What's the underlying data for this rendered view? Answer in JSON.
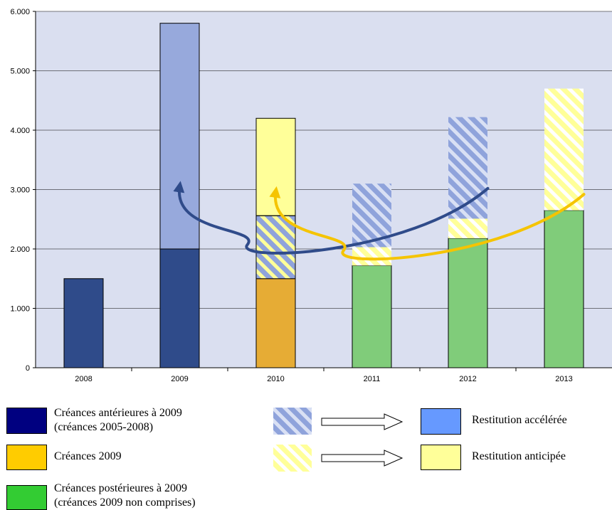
{
  "chart_data": {
    "type": "bar",
    "stacked": true,
    "categories": [
      "2008",
      "2009",
      "2010",
      "2011",
      "2012",
      "2013"
    ],
    "y_ticks": [
      "0",
      "1.000",
      "2.000",
      "3.000",
      "4.000",
      "5.000",
      "6.000"
    ],
    "ylim": [
      0,
      6000
    ],
    "grid": true,
    "segments": [
      {
        "category": "2008",
        "from": 0,
        "to": 1500,
        "color": "#2f4b8a",
        "pattern": "solid"
      },
      {
        "category": "2009",
        "from": 0,
        "to": 2000,
        "color": "#2f4b8a",
        "pattern": "solid"
      },
      {
        "category": "2009",
        "from": 2000,
        "to": 5800,
        "color": "#97a9dc",
        "pattern": "solid"
      },
      {
        "category": "2010",
        "from": 0,
        "to": 1500,
        "color": "#e6ac35",
        "pattern": "solid"
      },
      {
        "category": "2010",
        "from": 1500,
        "to": 2560,
        "color": "#97a9dc",
        "pattern": "stripe-yellow-blue"
      },
      {
        "category": "2010",
        "from": 2560,
        "to": 4200,
        "color": "#ffff99",
        "pattern": "solid"
      },
      {
        "category": "2011",
        "from": 0,
        "to": 1720,
        "color": "#80cc7a",
        "pattern": "solid"
      },
      {
        "category": "2011",
        "from": 1720,
        "to": 2030,
        "color": "#ffff99",
        "pattern": "stripe-yellow"
      },
      {
        "category": "2011",
        "from": 2030,
        "to": 3100,
        "color": "#97a9dc",
        "pattern": "stripe-blue"
      },
      {
        "category": "2012",
        "from": 0,
        "to": 2180,
        "color": "#80cc7a",
        "pattern": "solid"
      },
      {
        "category": "2012",
        "from": 2180,
        "to": 2510,
        "color": "#ffff99",
        "pattern": "stripe-yellow"
      },
      {
        "category": "2012",
        "from": 2510,
        "to": 4220,
        "color": "#97a9dc",
        "pattern": "stripe-blue"
      },
      {
        "category": "2013",
        "from": 0,
        "to": 2650,
        "color": "#80cc7a",
        "pattern": "solid"
      },
      {
        "category": "2013",
        "from": 2650,
        "to": 4700,
        "color": "#ffff99",
        "pattern": "stripe-yellow"
      }
    ],
    "arrows": [
      {
        "color": "#2f4b8a",
        "tail": [
          "2012",
          3020
        ],
        "via": [
          "2010",
          2130
        ],
        "head": [
          "2009",
          3050
        ]
      },
      {
        "color": "#f5c400",
        "tail": [
          "2013",
          2920
        ],
        "via": [
          "2011",
          2030
        ],
        "head": [
          "2010",
          2960
        ]
      }
    ]
  },
  "legend": {
    "items": [
      {
        "line1": "Créances antérieures à 2009",
        "line2": "(créances 2005-2008)",
        "color": "#000080"
      },
      {
        "line1": "Créances 2009",
        "line2": "",
        "color": "#ffcc00"
      },
      {
        "line1": "Créances postérieures à 2009",
        "line2": "(créances 2009 non comprises)",
        "color": "#33cc33"
      }
    ],
    "mappings": [
      {
        "pattern": "stripe-blue",
        "label": "Restitution accélérée",
        "color": "#6699ff"
      },
      {
        "pattern": "stripe-yellow",
        "label": "Restitution anticipée",
        "color": "#ffff99"
      }
    ]
  }
}
